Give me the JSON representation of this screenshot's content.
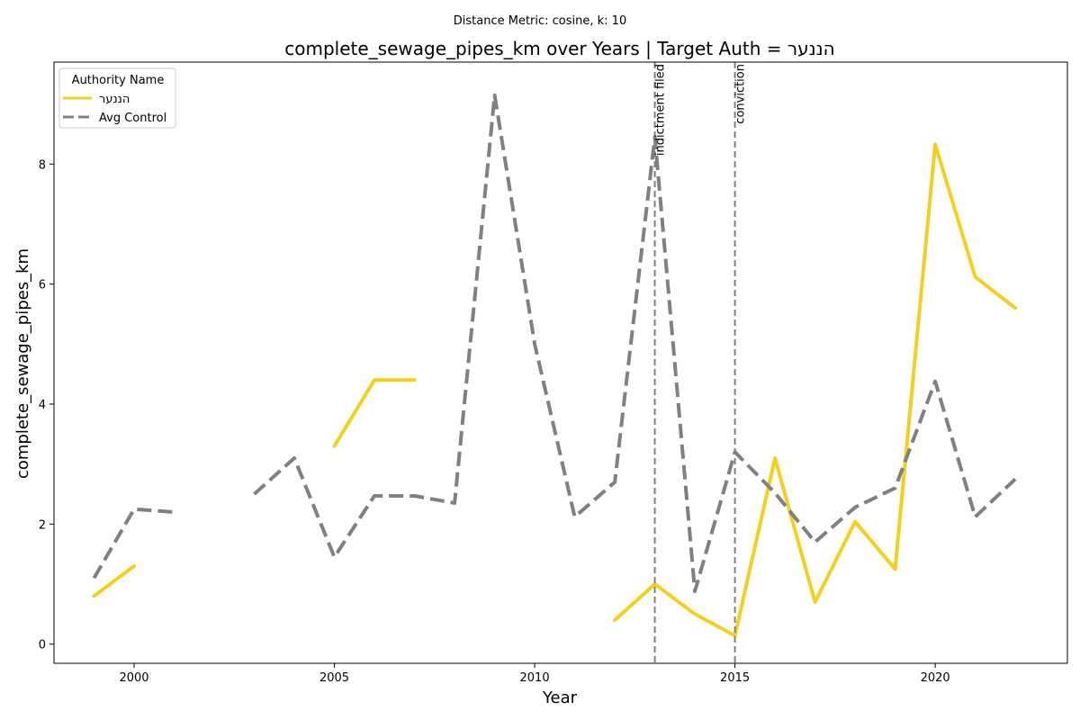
{
  "chart_data": {
    "type": "line",
    "suptitle": "Distance Metric: cosine, k: 10",
    "title": "complete_sewage_pipes_km over Years | Target Auth = הננער",
    "xlabel": "Year",
    "ylabel": "complete_sewage_pipes_km",
    "xlim": [
      1998.0,
      2023.3
    ],
    "ylim": [
      -0.32,
      9.7
    ],
    "xticks": [
      2000,
      2005,
      2010,
      2015,
      2020
    ],
    "yticks": [
      0,
      2,
      4,
      6,
      8
    ],
    "grid": false,
    "legend": {
      "title": "Authority Name",
      "placement": "top-left"
    },
    "series": [
      {
        "name": "הננער",
        "color": "#f2d01e",
        "style": "solid",
        "points": [
          [
            1999,
            0.8
          ],
          [
            2000,
            1.3
          ],
          [
            2001,
            null
          ],
          [
            2002,
            null
          ],
          [
            2003,
            null
          ],
          [
            2004,
            null
          ],
          [
            2005,
            3.3
          ],
          [
            2006,
            4.4
          ],
          [
            2007,
            4.4
          ],
          [
            2008,
            null
          ],
          [
            2009,
            null
          ],
          [
            2010,
            null
          ],
          [
            2011,
            null
          ],
          [
            2012,
            0.4
          ],
          [
            2013,
            1.0
          ],
          [
            2014,
            0.5
          ],
          [
            2015,
            0.14
          ],
          [
            2016,
            3.1
          ],
          [
            2017,
            0.7
          ],
          [
            2018,
            2.04
          ],
          [
            2019,
            1.25
          ],
          [
            2020,
            8.33
          ],
          [
            2021,
            6.12
          ],
          [
            2022,
            5.6
          ]
        ]
      },
      {
        "name": "Avg Control",
        "color": "#808080",
        "style": "dashed",
        "points": [
          [
            1999,
            1.1
          ],
          [
            2000,
            2.25
          ],
          [
            2001,
            2.2
          ],
          [
            2002,
            null
          ],
          [
            2003,
            2.5
          ],
          [
            2004,
            3.1
          ],
          [
            2005,
            1.45
          ],
          [
            2006,
            2.47
          ],
          [
            2007,
            2.47
          ],
          [
            2008,
            2.35
          ],
          [
            2009,
            9.15
          ],
          [
            2010,
            5.0
          ],
          [
            2011,
            2.12
          ],
          [
            2012,
            2.7
          ],
          [
            2013,
            8.45
          ],
          [
            2014,
            0.88
          ],
          [
            2015,
            3.2
          ],
          [
            2016,
            2.52
          ],
          [
            2017,
            1.7
          ],
          [
            2018,
            2.28
          ],
          [
            2019,
            2.6
          ],
          [
            2020,
            4.38
          ],
          [
            2021,
            2.12
          ],
          [
            2022,
            2.75
          ]
        ]
      }
    ],
    "events": [
      {
        "x": 2013,
        "label": "indictment filed"
      },
      {
        "x": 2015,
        "label": "conviction"
      }
    ]
  }
}
